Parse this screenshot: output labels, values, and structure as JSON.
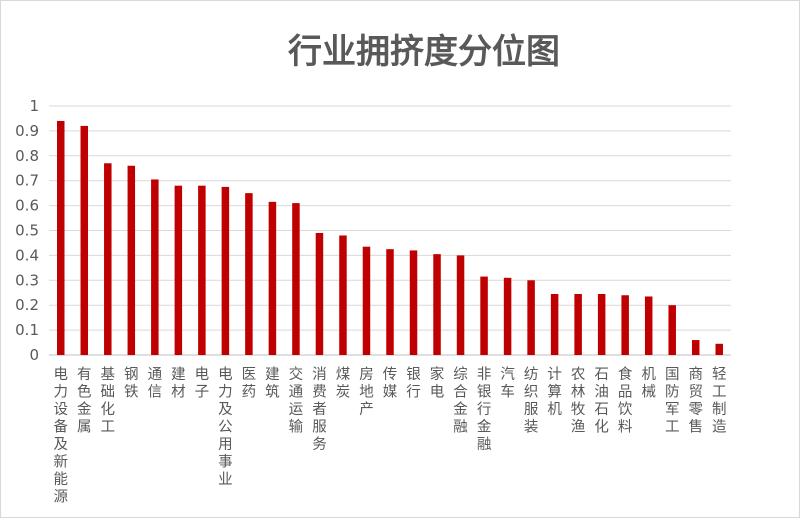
{
  "chart_data": {
    "type": "bar",
    "title": "行业拥挤度分位图",
    "xlabel": "",
    "ylabel": "",
    "ylim": [
      0,
      1
    ],
    "yticks": [
      "0",
      "0.1",
      "0.2",
      "0.3",
      "0.4",
      "0.5",
      "0.6",
      "0.7",
      "0.8",
      "0.9",
      "1"
    ],
    "grid": true,
    "legend": "none",
    "bar_color": "#C00000",
    "categories": [
      "电力设备及新能源",
      "有色金属",
      "基础化工",
      "钢铁",
      "通信",
      "建材",
      "电子",
      "电力及公用事业",
      "医药",
      "建筑",
      "交通运输",
      "消费者服务",
      "煤炭",
      "房地产",
      "传媒",
      "银行",
      "家电",
      "综合金融",
      "非银行金融",
      "汽车",
      "纺织服装",
      "计算机",
      "农林牧渔",
      "石油石化",
      "食品饮料",
      "机械",
      "国防军工",
      "商贸零售",
      "轻工制造"
    ],
    "values": [
      0.94,
      0.92,
      0.77,
      0.76,
      0.705,
      0.68,
      0.68,
      0.675,
      0.65,
      0.615,
      0.61,
      0.49,
      0.48,
      0.435,
      0.425,
      0.42,
      0.405,
      0.4,
      0.315,
      0.31,
      0.3,
      0.245,
      0.245,
      0.245,
      0.24,
      0.235,
      0.2,
      0.06,
      0.045
    ]
  }
}
